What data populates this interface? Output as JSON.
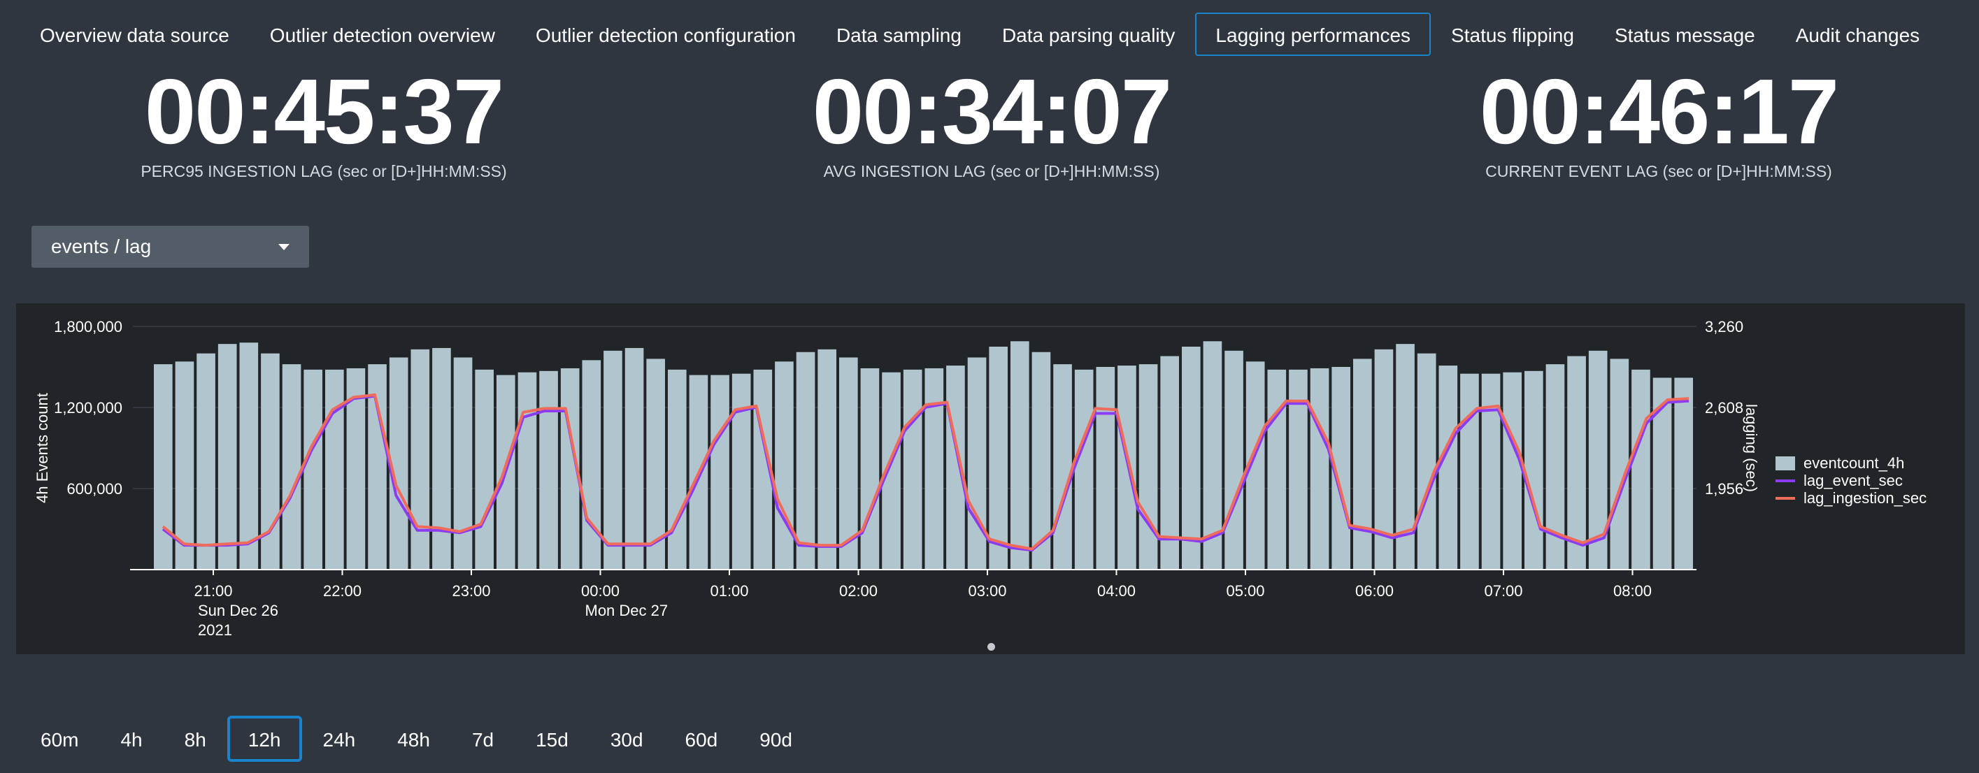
{
  "tabs": [
    {
      "label": "Overview data source",
      "active": false
    },
    {
      "label": "Outlier detection overview",
      "active": false
    },
    {
      "label": "Outlier detection configuration",
      "active": false
    },
    {
      "label": "Data sampling",
      "active": false
    },
    {
      "label": "Data parsing quality",
      "active": false
    },
    {
      "label": "Lagging performances",
      "active": true
    },
    {
      "label": "Status flipping",
      "active": false
    },
    {
      "label": "Status message",
      "active": false
    },
    {
      "label": "Audit changes",
      "active": false
    }
  ],
  "kpis": [
    {
      "value": "00:45:37",
      "label": "PERC95 INGESTION LAG (sec or [D+]HH:MM:SS)"
    },
    {
      "value": "00:34:07",
      "label": "AVG INGESTION LAG (sec or [D+]HH:MM:SS)"
    },
    {
      "value": "00:46:17",
      "label": "CURRENT EVENT LAG (sec or [D+]HH:MM:SS)"
    }
  ],
  "selector": {
    "value": "events / lag"
  },
  "colors": {
    "bar": "#b0c5cd",
    "lag_event": "#8b3cf2",
    "lag_ingestion": "#ef6c5c",
    "active_border": "#1a83c9"
  },
  "icons": {
    "dropdown": "chevron-down-icon"
  },
  "chart_data": {
    "type": "bar",
    "ylabel": "4h Events count",
    "y2label": "lagging (sec)",
    "ylim": [
      0,
      1800000
    ],
    "y2lim": [
      1304,
      3260
    ],
    "yticks": [
      "1,800,000",
      "1,200,000",
      "600,000"
    ],
    "y2ticks": [
      "3,260",
      "2,608",
      "1,956"
    ],
    "xticks": [
      {
        "label": "21:00",
        "sub1": "Sun Dec 26",
        "sub2": "2021"
      },
      {
        "label": "22:00",
        "sub1": "",
        "sub2": ""
      },
      {
        "label": "23:00",
        "sub1": "",
        "sub2": ""
      },
      {
        "label": "00:00",
        "sub1": "Mon Dec 27",
        "sub2": ""
      },
      {
        "label": "01:00",
        "sub1": "",
        "sub2": ""
      },
      {
        "label": "02:00",
        "sub1": "",
        "sub2": ""
      },
      {
        "label": "03:00",
        "sub1": "",
        "sub2": ""
      },
      {
        "label": "04:00",
        "sub1": "",
        "sub2": ""
      },
      {
        "label": "05:00",
        "sub1": "",
        "sub2": ""
      },
      {
        "label": "06:00",
        "sub1": "",
        "sub2": ""
      },
      {
        "label": "07:00",
        "sub1": "",
        "sub2": ""
      },
      {
        "label": "08:00",
        "sub1": "",
        "sub2": ""
      }
    ],
    "legend_position": "right",
    "series": [
      {
        "name": "eventcount_4h",
        "kind": "bar",
        "values": [
          1520000,
          1540000,
          1600000,
          1670000,
          1680000,
          1600000,
          1520000,
          1480000,
          1480000,
          1490000,
          1520000,
          1570000,
          1630000,
          1640000,
          1570000,
          1480000,
          1440000,
          1460000,
          1470000,
          1490000,
          1550000,
          1620000,
          1640000,
          1560000,
          1480000,
          1440000,
          1440000,
          1450000,
          1480000,
          1540000,
          1610000,
          1630000,
          1570000,
          1490000,
          1460000,
          1480000,
          1490000,
          1510000,
          1570000,
          1650000,
          1690000,
          1610000,
          1520000,
          1480000,
          1500000,
          1510000,
          1520000,
          1580000,
          1650000,
          1690000,
          1620000,
          1540000,
          1480000,
          1480000,
          1490000,
          1500000,
          1560000,
          1630000,
          1670000,
          1600000,
          1510000,
          1450000,
          1450000,
          1460000,
          1470000,
          1520000,
          1580000,
          1620000,
          1560000,
          1480000,
          1420000,
          1420000
        ]
      },
      {
        "name": "lag_event_sec",
        "kind": "line",
        "values": [
          1630,
          1500,
          1500,
          1500,
          1510,
          1600,
          1880,
          2260,
          2560,
          2680,
          2700,
          1900,
          1620,
          1620,
          1600,
          1650,
          2000,
          2530,
          2580,
          2580,
          1700,
          1500,
          1500,
          1500,
          1600,
          1940,
          2310,
          2570,
          2610,
          1800,
          1500,
          1490,
          1490,
          1600,
          2020,
          2420,
          2610,
          2640,
          1800,
          1530,
          1480,
          1460,
          1600,
          2120,
          2560,
          2560,
          1790,
          1550,
          1550,
          1530,
          1600,
          2010,
          2420,
          2640,
          2640,
          2270,
          1640,
          1610,
          1560,
          1600,
          2050,
          2400,
          2580,
          2590,
          2190,
          1630,
          1560,
          1500,
          1560,
          2030,
          2480,
          2650,
          2660
        ]
      },
      {
        "name": "lag_ingestion_sec",
        "kind": "line",
        "values": [
          1650,
          1510,
          1500,
          1510,
          1520,
          1610,
          1900,
          2290,
          2590,
          2690,
          2710,
          1980,
          1650,
          1640,
          1610,
          1670,
          2050,
          2570,
          2600,
          2600,
          1720,
          1510,
          1510,
          1510,
          1620,
          1980,
          2340,
          2590,
          2620,
          1870,
          1520,
          1500,
          1500,
          1620,
          2060,
          2450,
          2630,
          2650,
          1860,
          1550,
          1500,
          1470,
          1620,
          2170,
          2600,
          2590,
          1850,
          1570,
          1560,
          1550,
          1620,
          2060,
          2460,
          2660,
          2660,
          2320,
          1660,
          1630,
          1580,
          1630,
          2100,
          2440,
          2600,
          2620,
          2250,
          1650,
          1580,
          1520,
          1590,
          2080,
          2520,
          2670,
          2680
        ]
      }
    ]
  },
  "time_ranges": [
    {
      "label": "60m",
      "active": false
    },
    {
      "label": "4h",
      "active": false
    },
    {
      "label": "8h",
      "active": false
    },
    {
      "label": "12h",
      "active": true
    },
    {
      "label": "24h",
      "active": false
    },
    {
      "label": "48h",
      "active": false
    },
    {
      "label": "7d",
      "active": false
    },
    {
      "label": "15d",
      "active": false
    },
    {
      "label": "30d",
      "active": false
    },
    {
      "label": "60d",
      "active": false
    },
    {
      "label": "90d",
      "active": false
    }
  ]
}
